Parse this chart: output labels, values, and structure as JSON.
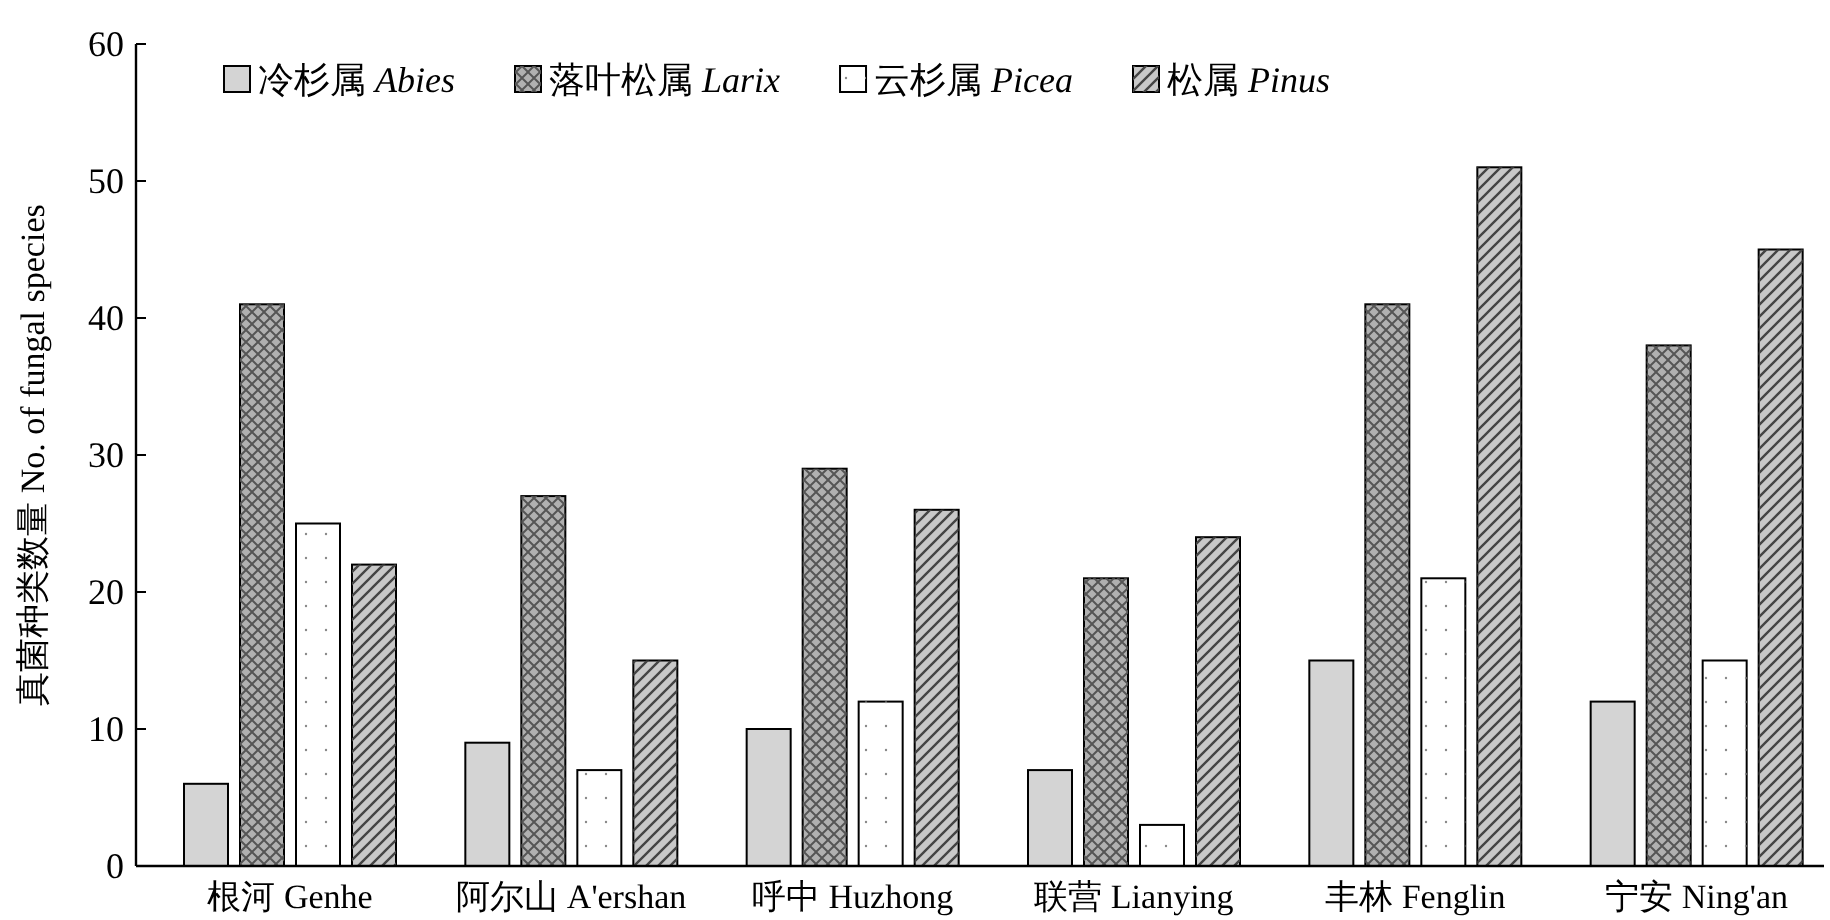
{
  "chart_data": {
    "type": "bar",
    "ylabel": "真菌种类数量 No. of fungal species",
    "categories": [
      "根河 Genhe",
      "阿尔山 A'ershan",
      "呼中 Huzhong",
      "联营 Lianying",
      "丰林 Fenglin",
      "宁安 Ning'an"
    ],
    "series": [
      {
        "name": "冷杉属 Abies",
        "color": "#d4d4d4",
        "values": [
          6,
          9,
          10,
          7,
          15,
          12
        ]
      },
      {
        "name": "落叶松属 Larix",
        "color": "#b0b0b0",
        "values": [
          41,
          27,
          29,
          21,
          41,
          38
        ]
      },
      {
        "name": "云杉属 Picea",
        "color": "#ffffff",
        "values": [
          25,
          7,
          12,
          3,
          21,
          15
        ]
      },
      {
        "name": "松属 Pinus",
        "color": "#c8c8c8",
        "values": [
          22,
          15,
          26,
          24,
          51,
          45
        ]
      }
    ],
    "ylim": [
      0,
      60
    ],
    "yticks": [
      0,
      10,
      20,
      30,
      40,
      50,
      60
    ],
    "legend": "top left"
  }
}
